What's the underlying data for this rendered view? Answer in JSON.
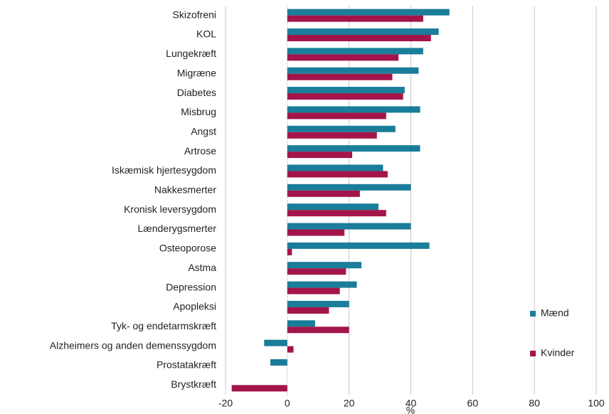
{
  "chart_data": {
    "type": "barh",
    "categories": [
      "Skizofreni",
      "KOL",
      "Lungekræft",
      "Migræne",
      "Diabetes",
      "Misbrug",
      "Angst ",
      "Artrose",
      "Iskæmisk hjertesygdom",
      "Nakkesmerter",
      "Kronisk leversygdom",
      "Lænderygsmerter",
      "Osteoporose",
      "Astma",
      "Depression",
      "Apopleksi",
      "Tyk- og endetarmskræft",
      "Alzheimers og anden demenssygdom",
      "Prostatakræft",
      "Brystkræft"
    ],
    "series": [
      {
        "name": "Mænd",
        "color": "#1a7d99",
        "values": [
          52.5,
          49,
          44,
          42.5,
          38,
          43,
          35,
          43,
          31,
          40,
          29.5,
          40,
          46,
          24,
          22.5,
          20,
          9,
          -7.5,
          -5.5,
          null
        ]
      },
      {
        "name": "Kvinder",
        "color": "#a3154a",
        "values": [
          44,
          46.5,
          36,
          34,
          37.5,
          32,
          29,
          21,
          32.5,
          23.5,
          32,
          18.5,
          1.5,
          19,
          17,
          13.5,
          20,
          2,
          null,
          -18
        ]
      }
    ],
    "xlabel": "%",
    "xlim": [
      -20,
      100
    ],
    "xticks": [
      -20,
      0,
      20,
      40,
      60,
      80,
      100
    ],
    "grid": true
  }
}
